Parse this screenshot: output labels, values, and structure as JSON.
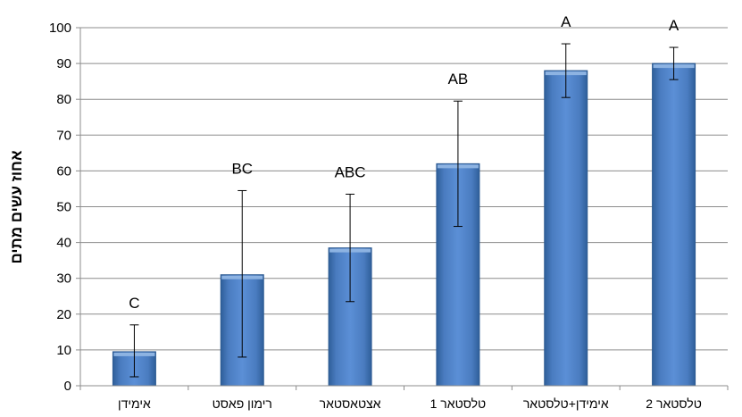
{
  "chart_data": {
    "type": "bar",
    "title": "",
    "xlabel": "",
    "ylabel": "אחוז עשים מתים",
    "ylim": [
      0,
      100
    ],
    "yticks": [
      0,
      10,
      20,
      30,
      40,
      50,
      60,
      70,
      80,
      90,
      100
    ],
    "grid": true,
    "legend": "none",
    "bar_color": "#4f81bd",
    "categories": [
      "אימידן",
      "רימון פאסט",
      "אצטאסטאר",
      "טלסטאר 1",
      "אימידן+טלסטאר",
      "טלסטאר 2"
    ],
    "values": [
      9.5,
      31,
      38.5,
      62,
      88,
      90
    ],
    "error_low": [
      2.5,
      8,
      23.5,
      44.5,
      80.5,
      85.5
    ],
    "error_high": [
      17,
      54.5,
      53.5,
      79.5,
      95.5,
      94.5
    ],
    "significance_labels": [
      "C",
      "BC",
      "ABC",
      "AB",
      "A",
      "A"
    ]
  }
}
